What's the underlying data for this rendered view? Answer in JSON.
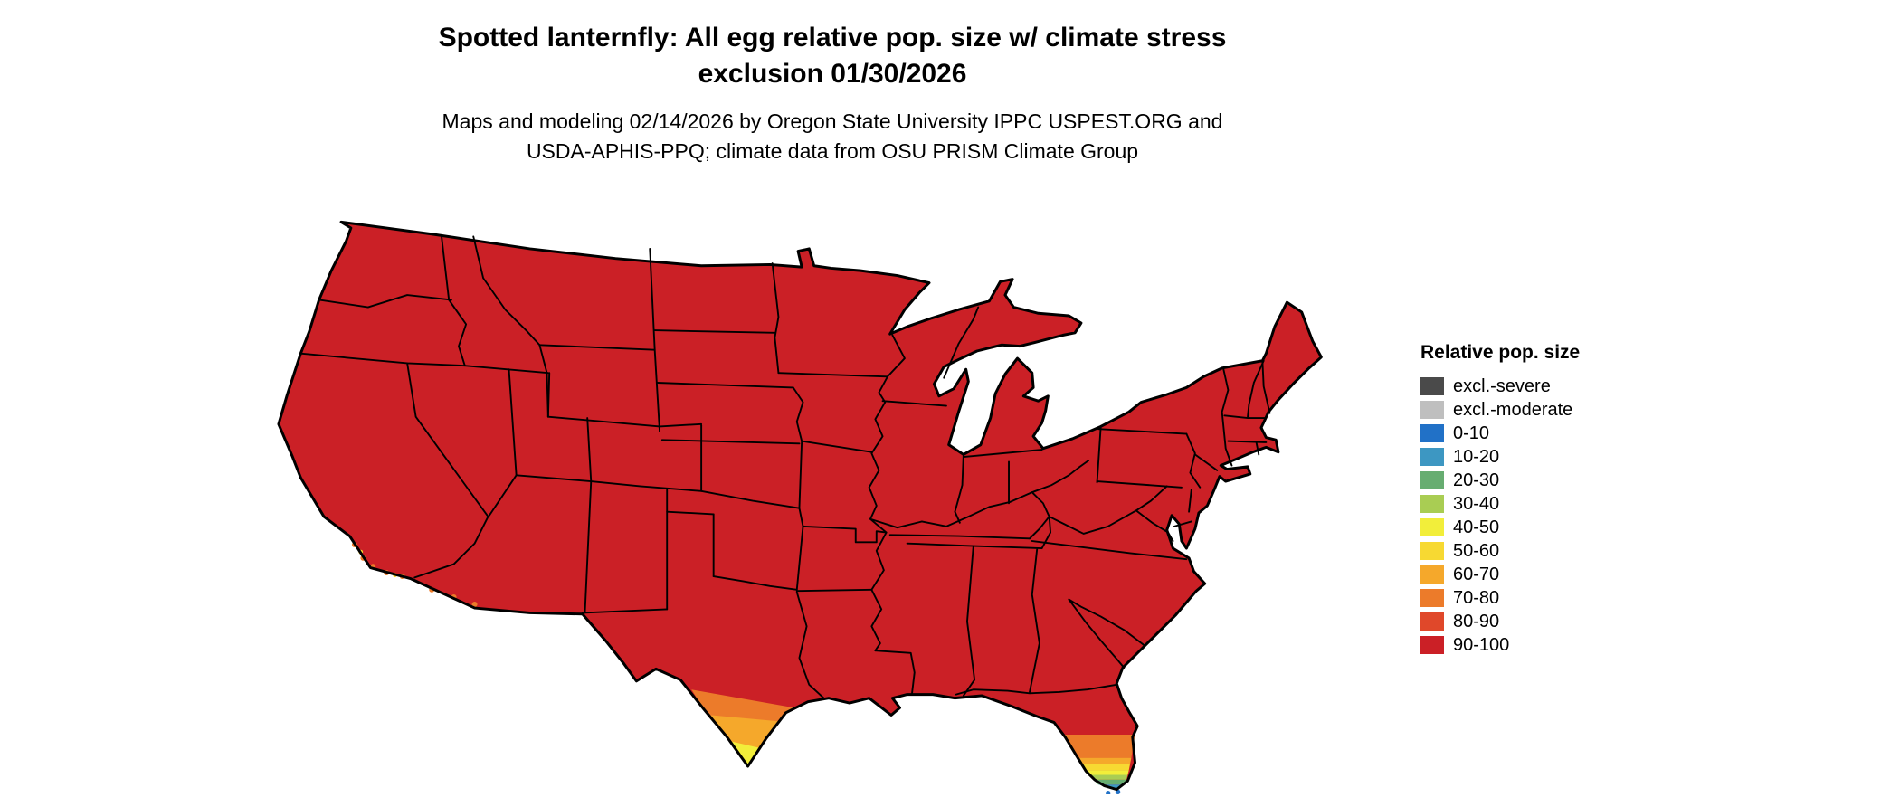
{
  "header": {
    "title_line1": "Spotted lanternfly: All egg relative pop. size w/ climate stress",
    "title_line2": "exclusion 01/30/2026",
    "subtitle_line1": "Maps and modeling 02/14/2026 by Oregon State University IPPC USPEST.ORG and",
    "subtitle_line2": "USDA-APHIS-PPQ; climate data from OSU PRISM Climate Group"
  },
  "legend": {
    "title": "Relative pop. size",
    "items": [
      {
        "label": "excl.-severe",
        "color": "#4a4a4a"
      },
      {
        "label": "excl.-moderate",
        "color": "#bfbfbf"
      },
      {
        "label": "0-10",
        "color": "#2171c7"
      },
      {
        "label": "10-20",
        "color": "#3d97c2"
      },
      {
        "label": "20-30",
        "color": "#67ad71"
      },
      {
        "label": "30-40",
        "color": "#a9cd53"
      },
      {
        "label": "40-50",
        "color": "#f2ee3a"
      },
      {
        "label": "50-60",
        "color": "#f7d932"
      },
      {
        "label": "60-70",
        "color": "#f5a82b"
      },
      {
        "label": "70-80",
        "color": "#ec7b2a"
      },
      {
        "label": "80-90",
        "color": "#e0482a"
      },
      {
        "label": "90-100",
        "color": "#cb2026"
      }
    ]
  },
  "map": {
    "dominant_class": "90-100",
    "border_color": "#000000",
    "background": "#ffffff",
    "low_value_regions": [
      {
        "region": "South Florida peninsula",
        "classes": [
          "70-80",
          "60-70",
          "50-60",
          "40-50",
          "30-40",
          "20-30",
          "10-20",
          "0-10"
        ]
      },
      {
        "region": "South Texas (Rio Grande Valley)",
        "classes": [
          "70-80",
          "60-70",
          "40-50"
        ]
      },
      {
        "region": "Southern California coast and Arizona border",
        "classes": [
          "70-80",
          "50-60"
        ]
      }
    ]
  }
}
